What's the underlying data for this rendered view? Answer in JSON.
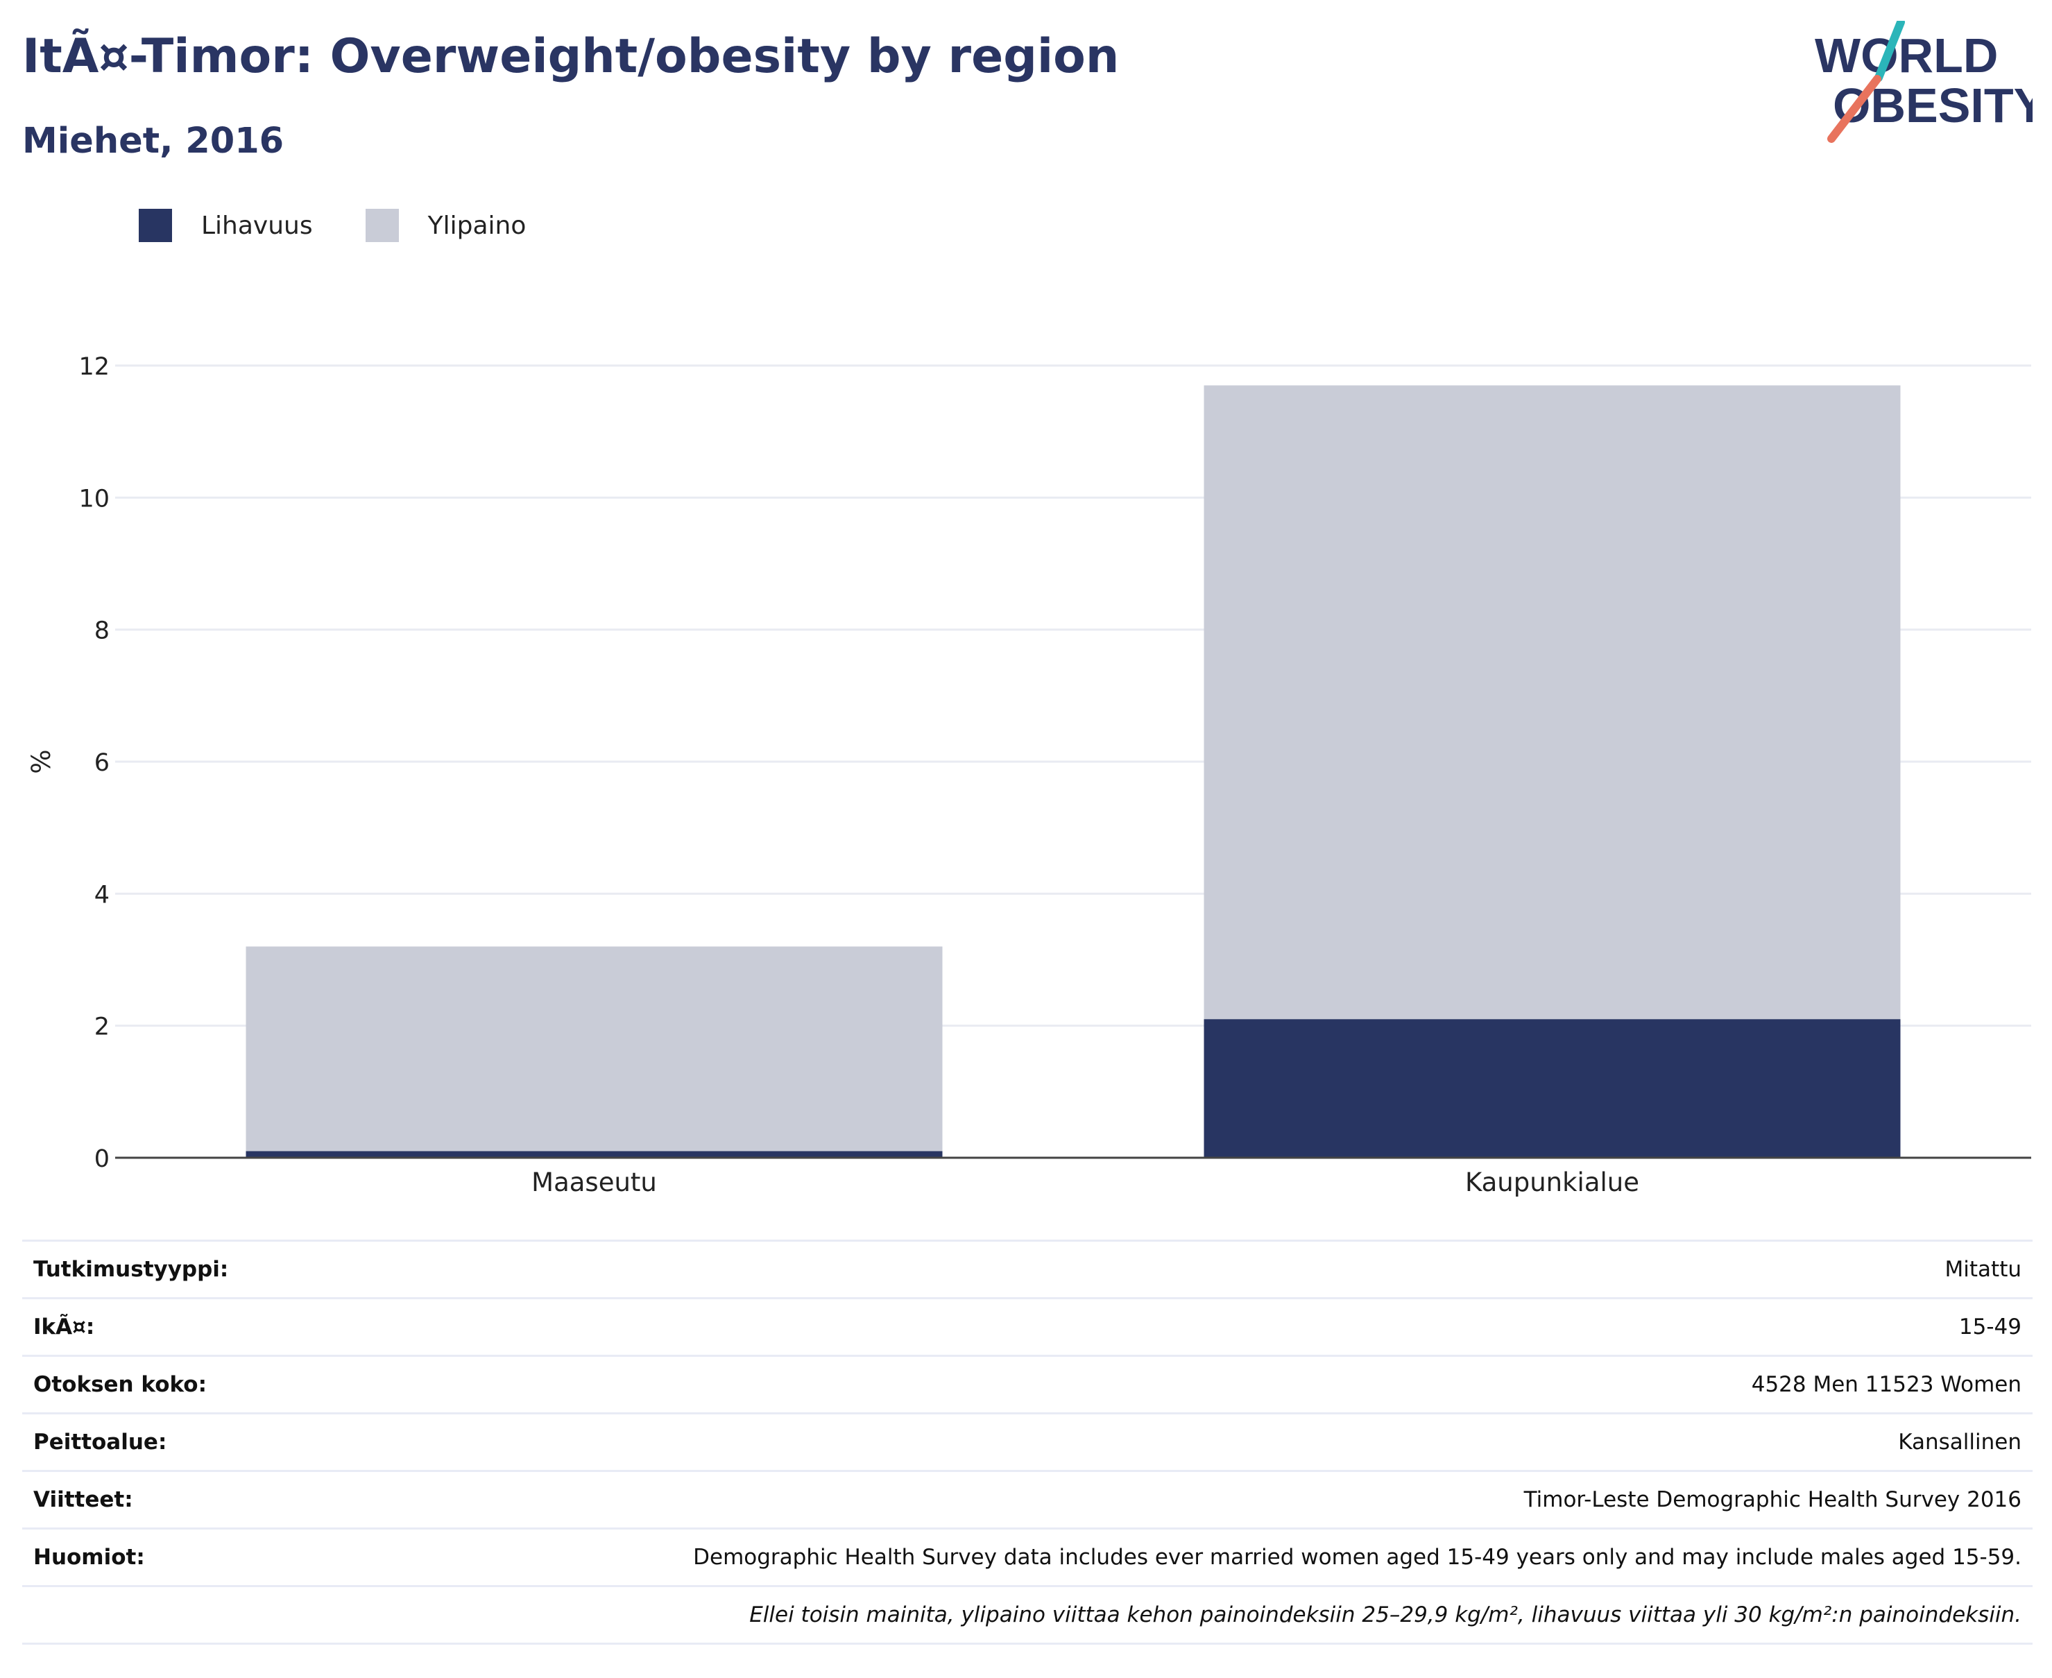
{
  "header": {
    "title": "ItÃ¤-Timor: Overweight/obesity by region",
    "subtitle": "Miehet, 2016"
  },
  "logo": {
    "line1": "WORLD",
    "line2": "OBESITY",
    "accent_colors": [
      "#2bb5b9",
      "#e8735d"
    ]
  },
  "legend": {
    "items": [
      {
        "label": "Lihavuus",
        "color": "#283562"
      },
      {
        "label": "Ylipaino",
        "color": "#c9ccd7"
      }
    ]
  },
  "chart_data": {
    "type": "bar",
    "stacked": true,
    "categories": [
      "Maaseutu",
      "Kaupunkialue"
    ],
    "series": [
      {
        "name": "Lihavuus",
        "color": "#283562",
        "values": [
          0.1,
          2.1
        ]
      },
      {
        "name": "Ylipaino",
        "color": "#c9ccd7",
        "values": [
          3.1,
          9.6
        ]
      }
    ],
    "xlabel": "",
    "ylabel": "%",
    "ylim": [
      0,
      12
    ],
    "yticks": [
      0,
      2,
      4,
      6,
      8,
      10,
      12
    ],
    "grid": true,
    "legend_position": "top-left"
  },
  "info": {
    "rows": [
      {
        "key": "Tutkimustyyppi:",
        "value": "Mitattu"
      },
      {
        "key": "IkÃ¤:",
        "value": "15-49"
      },
      {
        "key": "Otoksen koko:",
        "value": "4528 Men 11523 Women"
      },
      {
        "key": "Peittoalue:",
        "value": "Kansallinen"
      },
      {
        "key": "Viitteet:",
        "value": "Timor-Leste Demographic Health Survey 2016"
      },
      {
        "key": "Huomiot:",
        "value": "Demographic Health Survey data includes ever married women aged 15-49 years only and may include males aged 15-59."
      }
    ],
    "footnote": "Ellei toisin mainita, ylipaino viittaa kehon painoindeksiin 25–29,9 kg/m², lihavuus viittaa yli 30 kg/m²:n painoindeksiin."
  }
}
